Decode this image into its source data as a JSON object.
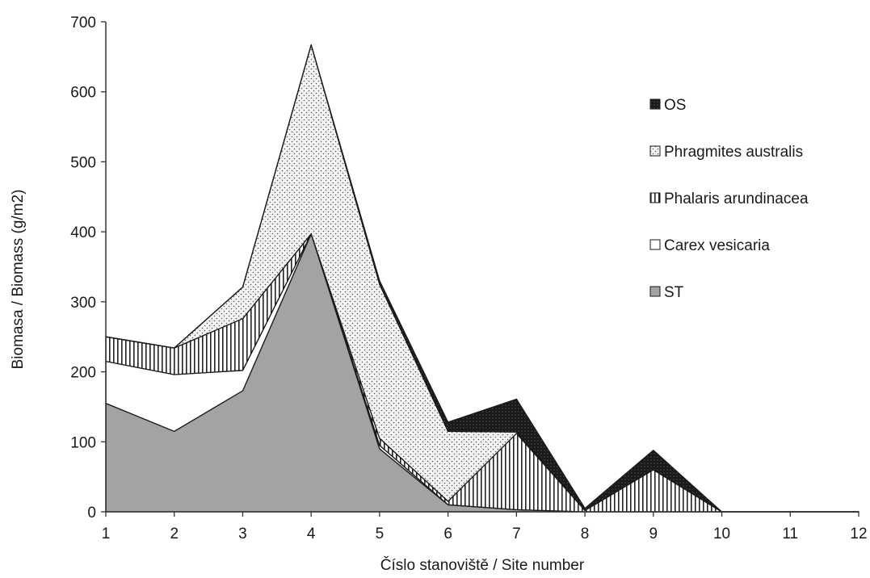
{
  "chart_data": {
    "type": "area",
    "stacked": true,
    "x": [
      1,
      2,
      3,
      4,
      5,
      6,
      7,
      8,
      9,
      10,
      11,
      12
    ],
    "xlabel": "Číslo stanoviště /  Site number",
    "ylabel": "Biomasa / Biomass (g/m2)",
    "ylim": [
      0,
      700
    ],
    "yticks": [
      0,
      100,
      200,
      300,
      400,
      500,
      600,
      700
    ],
    "grid": false,
    "legend_position": "right",
    "series": [
      {
        "name": "ST",
        "pattern": "solid-gray",
        "values": [
          155,
          115,
          173,
          397,
          90,
          10,
          3,
          0,
          0,
          0,
          0,
          0
        ]
      },
      {
        "name": "Carex vesicaria",
        "pattern": "white",
        "values": [
          60,
          81,
          29,
          0,
          5,
          0,
          0,
          0,
          0,
          0,
          0,
          0
        ]
      },
      {
        "name": "Phalaris arundinacea",
        "pattern": "vertical-stripes",
        "values": [
          35,
          38,
          74,
          0,
          10,
          5,
          109,
          2,
          60,
          0,
          0,
          0
        ]
      },
      {
        "name": "Phragmites australis",
        "pattern": "dots",
        "values": [
          0,
          0,
          45,
          270,
          220,
          100,
          2,
          0,
          0,
          0,
          0,
          0
        ]
      },
      {
        "name": "OS",
        "pattern": "dark-dots",
        "values": [
          0,
          0,
          0,
          0,
          5,
          13,
          47,
          3,
          28,
          0,
          0,
          0
        ]
      }
    ],
    "legend_order": [
      "OS",
      "Phragmites australis",
      "Phalaris arundinacea",
      "Carex vesicaria",
      "ST"
    ]
  }
}
